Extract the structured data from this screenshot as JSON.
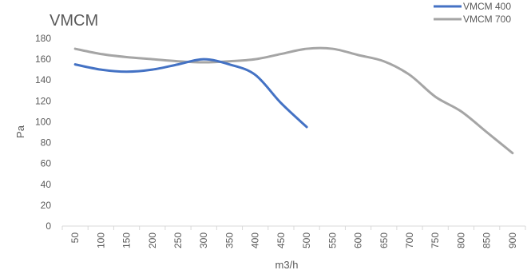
{
  "chart_data": {
    "type": "line",
    "title": "VMCM",
    "xlabel": "m3/h",
    "ylabel": "Pa",
    "ylim": [
      0,
      180
    ],
    "yticks": [
      0,
      20,
      40,
      60,
      80,
      100,
      120,
      140,
      160,
      180
    ],
    "categories": [
      "50",
      "100",
      "150",
      "200",
      "250",
      "300",
      "350",
      "400",
      "450",
      "500",
      "550",
      "600",
      "650",
      "700",
      "750",
      "800",
      "850",
      "900"
    ],
    "grid": false,
    "legend_position": "top-right",
    "series": [
      {
        "name": "VMCM 400",
        "color": "#4472C4",
        "values": [
          155,
          150,
          148,
          150,
          155,
          160,
          155,
          145,
          118,
          95,
          null,
          null,
          null,
          null,
          null,
          null,
          null,
          null
        ]
      },
      {
        "name": "VMCM 700",
        "color": "#A5A5A5",
        "values": [
          170,
          165,
          162,
          160,
          158,
          157,
          158,
          160,
          165,
          170,
          170,
          164,
          158,
          145,
          124,
          110,
          90,
          70
        ]
      }
    ]
  }
}
